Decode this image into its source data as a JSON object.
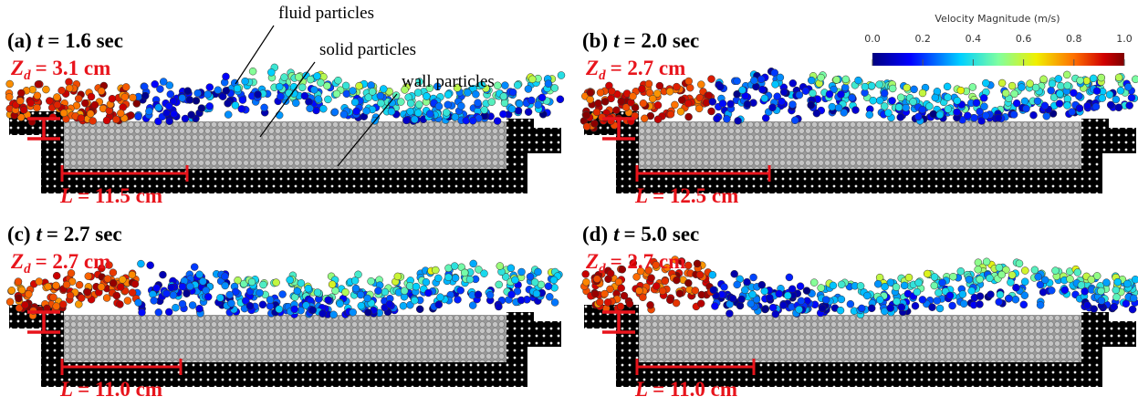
{
  "annotations": {
    "fluid": "fluid particles",
    "solid": "solid particles",
    "wall": "wall particles"
  },
  "colorbar": {
    "title": "Velocity Magnitude (m/s)",
    "ticks": [
      "0.0",
      "0.2",
      "0.4",
      "0.6",
      "0.8",
      "1.0"
    ]
  },
  "panels": [
    {
      "label": "(a)",
      "time_symbol": "t",
      "time": "= 1.6 sec",
      "depth_symbol": "Z",
      "depth_subscript": "d",
      "depth": "= 3.1 cm",
      "length_symbol": "L",
      "length": "= 11.5 cm"
    },
    {
      "label": "(b)",
      "time_symbol": "t",
      "time": "= 2.0 sec",
      "depth_symbol": "Z",
      "depth_subscript": "d",
      "depth": "= 2.7 cm",
      "length_symbol": "L",
      "length": "= 12.5 cm"
    },
    {
      "label": "(c)",
      "time_symbol": "t",
      "time": "= 2.7 sec",
      "depth_symbol": "Z",
      "depth_subscript": "d",
      "depth": "= 2.7 cm",
      "length_symbol": "L",
      "length": "= 11.0 cm"
    },
    {
      "label": "(d)",
      "time_symbol": "t",
      "time": "= 5.0 sec",
      "depth_symbol": "Z",
      "depth_subscript": "d",
      "depth": "= 2.7 cm",
      "length_symbol": "L",
      "length": "= 11.0 cm"
    }
  ]
}
